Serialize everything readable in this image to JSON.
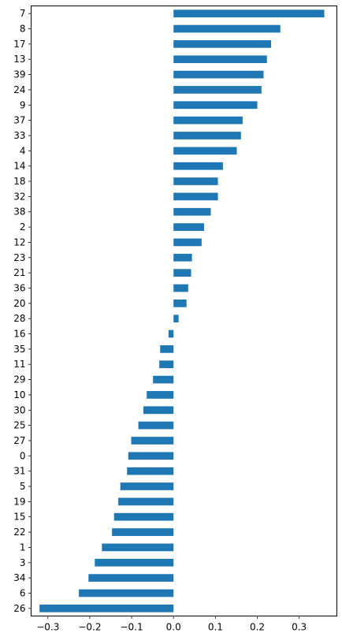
{
  "chart_data": {
    "type": "bar",
    "orientation": "horizontal",
    "title": "",
    "xlabel": "",
    "ylabel": "",
    "xlim": [
      -0.34,
      0.39
    ],
    "grid": false,
    "legend": "none",
    "bar_color": "#1f77b4",
    "categories": [
      "7",
      "8",
      "17",
      "13",
      "39",
      "24",
      "9",
      "37",
      "33",
      "4",
      "14",
      "18",
      "32",
      "38",
      "2",
      "12",
      "23",
      "21",
      "36",
      "20",
      "28",
      "16",
      "35",
      "11",
      "29",
      "10",
      "30",
      "25",
      "27",
      "0",
      "31",
      "5",
      "19",
      "15",
      "22",
      "1",
      "3",
      "34",
      "6",
      "26"
    ],
    "values": [
      0.36,
      0.255,
      0.233,
      0.223,
      0.215,
      0.21,
      0.2,
      0.165,
      0.161,
      0.151,
      0.118,
      0.106,
      0.106,
      0.089,
      0.073,
      0.067,
      0.044,
      0.042,
      0.035,
      0.031,
      0.012,
      -0.012,
      -0.032,
      -0.034,
      -0.049,
      -0.064,
      -0.072,
      -0.084,
      -0.101,
      -0.108,
      -0.111,
      -0.127,
      -0.132,
      -0.142,
      -0.147,
      -0.171,
      -0.188,
      -0.203,
      -0.226,
      -0.32
    ],
    "xticks": [
      {
        "value": -0.3,
        "label": "−0.3"
      },
      {
        "value": -0.2,
        "label": "−0.2"
      },
      {
        "value": -0.1,
        "label": "−0.1"
      },
      {
        "value": 0.0,
        "label": "0.0"
      },
      {
        "value": 0.1,
        "label": "0.1"
      },
      {
        "value": 0.2,
        "label": "0.2"
      },
      {
        "value": 0.3,
        "label": "0.3"
      }
    ]
  }
}
